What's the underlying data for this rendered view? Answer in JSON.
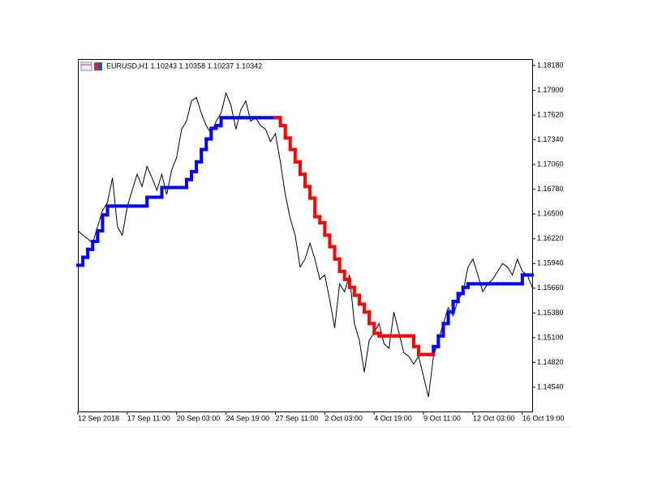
{
  "chart_data": {
    "type": "line",
    "title": "EURUSD,H1  1.10243 1.10358 1.10237 1.10342",
    "xlim": [
      0,
      92
    ],
    "xticks": [
      {
        "value": 0,
        "label": "12 Sep 2018"
      },
      {
        "value": 10,
        "label": "17 Sep 11:00"
      },
      {
        "value": 20,
        "label": "20 Sep 03:00"
      },
      {
        "value": 30,
        "label": "24 Sep 19:00"
      },
      {
        "value": 40,
        "label": "27 Sep 11:00"
      },
      {
        "value": 50,
        "label": "2 Oct 03:00"
      },
      {
        "value": 60,
        "label": "4 Oct 19:00"
      },
      {
        "value": 70,
        "label": "9 Oct 11:00"
      },
      {
        "value": 80,
        "label": "12 Oct 03:00"
      },
      {
        "value": 90,
        "label": "16 Oct 19:00"
      }
    ],
    "ylim": [
      1.14265,
      1.18253
    ],
    "yticks": [
      {
        "value": 1.1818,
        "label": "1.18180"
      },
      {
        "value": 1.179,
        "label": "1.17900"
      },
      {
        "value": 1.1762,
        "label": "1.17620"
      },
      {
        "value": 1.1734,
        "label": "1.17340"
      },
      {
        "value": 1.1706,
        "label": "1.17060"
      },
      {
        "value": 1.1678,
        "label": "1.16780"
      },
      {
        "value": 1.165,
        "label": "1.16500"
      },
      {
        "value": 1.1622,
        "label": "1.16220"
      },
      {
        "value": 1.1594,
        "label": "1.15940"
      },
      {
        "value": 1.1566,
        "label": "1.15660"
      },
      {
        "value": 1.1538,
        "label": "1.15380"
      },
      {
        "value": 1.151,
        "label": "1.15100"
      },
      {
        "value": 1.1482,
        "label": "1.14820"
      },
      {
        "value": 1.1454,
        "label": "1.14540"
      }
    ],
    "grid": false,
    "price": {
      "color": "#000000",
      "values": [
        1.1631,
        1.1626,
        1.1622,
        1.1617,
        1.1636,
        1.1654,
        1.1663,
        1.1691,
        1.1636,
        1.1626,
        1.1658,
        1.1677,
        1.1695,
        1.1681,
        1.1704,
        1.1691,
        1.1677,
        1.1695,
        1.1672,
        1.17,
        1.1714,
        1.1746,
        1.1755,
        1.1778,
        1.1782,
        1.1764,
        1.175,
        1.1741,
        1.1755,
        1.1764,
        1.1787,
        1.1773,
        1.1746,
        1.1768,
        1.1778,
        1.1755,
        1.1759,
        1.175,
        1.1746,
        1.1732,
        1.1741,
        1.1709,
        1.1672,
        1.1645,
        1.1626,
        1.159,
        1.1599,
        1.1617,
        1.1599,
        1.1576,
        1.1581,
        1.1553,
        1.1521,
        1.1571,
        1.1562,
        1.1581,
        1.1526,
        1.1507,
        1.1471,
        1.1507,
        1.1516,
        1.1526,
        1.1503,
        1.1498,
        1.1539,
        1.1516,
        1.1493,
        1.1489,
        1.148,
        1.1489,
        1.1466,
        1.1443,
        1.1489,
        1.1507,
        1.1526,
        1.1544,
        1.1535,
        1.1553,
        1.1562,
        1.159,
        1.1599,
        1.1581,
        1.1562,
        1.1571,
        1.1576,
        1.1585,
        1.1594,
        1.159,
        1.1581,
        1.1599,
        1.1585,
        1.1581,
        1.1567
      ]
    },
    "series": [
      {
        "color": "#0000ff",
        "values": [
          1.1592,
          1.1601,
          1.161,
          1.1619,
          1.1631,
          1.1649,
          1.1659,
          1.1659,
          1.1659,
          1.1659,
          1.1659,
          1.1659,
          1.1659,
          1.1659,
          1.1669,
          1.1669,
          1.1669,
          1.168,
          1.168,
          1.168,
          1.168,
          1.168,
          1.1689,
          1.1698,
          1.1709,
          1.1723,
          1.1735,
          1.1747,
          1.175,
          1.1759,
          1.1759,
          1.1759,
          1.1759,
          1.1759,
          1.1759,
          1.1759,
          1.1759,
          1.1759,
          1.1759,
          1.1759,
          1.1759,
          null,
          null,
          null,
          null,
          null,
          null,
          null,
          null,
          null,
          null,
          null,
          null,
          null,
          null,
          null,
          null,
          null,
          null,
          null,
          null,
          null,
          null,
          null,
          null,
          null,
          null,
          null,
          null,
          null,
          null,
          1.1491,
          1.15,
          1.1512,
          1.1526,
          1.1539,
          1.1551,
          1.156,
          1.1567,
          1.1571,
          1.1571,
          1.1571,
          1.1571,
          1.1571,
          1.1571,
          1.1571,
          1.1571,
          1.1571,
          1.1571,
          1.1571,
          1.1581,
          1.1581,
          1.1581
        ]
      },
      {
        "color": "#ff0000",
        "values": [
          null,
          null,
          null,
          null,
          null,
          null,
          null,
          null,
          null,
          null,
          null,
          null,
          null,
          null,
          null,
          null,
          null,
          null,
          null,
          null,
          null,
          null,
          null,
          null,
          null,
          null,
          null,
          null,
          null,
          null,
          null,
          null,
          null,
          null,
          null,
          null,
          null,
          null,
          null,
          null,
          1.1759,
          1.175,
          1.1736,
          1.1723,
          1.1709,
          1.1695,
          1.1681,
          1.1668,
          1.1647,
          1.164,
          1.1626,
          1.1613,
          1.1599,
          1.1585,
          1.1576,
          1.1567,
          1.1558,
          1.1548,
          1.1539,
          1.1526,
          1.1515,
          1.1512,
          1.1512,
          1.1512,
          1.1512,
          1.1512,
          1.1512,
          1.1512,
          1.15,
          1.1491,
          1.1491,
          1.1491,
          null,
          null,
          null,
          null,
          null,
          null,
          null,
          null,
          null,
          null,
          null,
          null,
          null,
          null,
          null,
          null,
          null,
          null,
          null,
          null,
          null
        ]
      }
    ]
  }
}
